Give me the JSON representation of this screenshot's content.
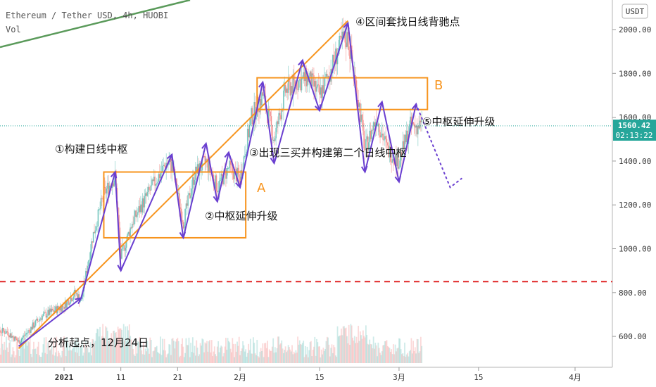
{
  "header": {
    "symbol_line": "Ethereum / Tether USD, 4h, HUOBI",
    "volume_label": "Vol",
    "currency": "USDT"
  },
  "price_tag": {
    "price": "1560.42",
    "countdown": "02:13:22"
  },
  "colors": {
    "candle_up": "#26a69a",
    "candle_down": "#ef5350",
    "zone": "#f7941d",
    "arrow": "#6a3fd0",
    "red_dash": "#e02424",
    "ma_green": "#5a9a5a",
    "price_tag": "#26a69a"
  },
  "annotations": {
    "start": "分析起点，12月24日",
    "step1": "①构建日线中枢",
    "step2": "②中枢延伸升级",
    "step3": "③出现三买并构建第二个日线中枢",
    "step4": "④区间套找日线背驰点",
    "step5": "⑤中枢延伸升级",
    "zone_a": "A",
    "zone_b": "B"
  },
  "chart_data": {
    "type": "candlestick",
    "title": "Ethereum / Tether USD, 4h, HUOBI",
    "y_ticks": [
      2000,
      1800,
      1600,
      1400,
      1200,
      1000,
      800,
      600
    ],
    "y_range": [
      500,
      2100
    ],
    "x_ticks": [
      "2021",
      "11",
      "21",
      "2月",
      "15",
      "3月",
      "15",
      "4月"
    ],
    "x_tick_dates": [
      "2021-01-01",
      "2021-01-11",
      "2021-01-21",
      "2021-02-01",
      "2021-02-15",
      "2021-03-01",
      "2021-03-15",
      "2021-04-01"
    ],
    "last_price": 1560.42,
    "support_level": 850,
    "zones": [
      {
        "label": "A",
        "start": "2021-01-08",
        "end": "2021-02-02",
        "low": 1050,
        "high": 1350
      },
      {
        "label": "B",
        "start": "2021-02-04",
        "end": "2021-03-06",
        "low": 1635,
        "high": 1780
      }
    ],
    "structure_path": [
      {
        "date": "2020-12-24",
        "price": 555
      },
      {
        "date": "2021-01-04",
        "price": 775
      },
      {
        "date": "2021-01-10",
        "price": 1350
      },
      {
        "date": "2021-01-11",
        "price": 900
      },
      {
        "date": "2021-01-20",
        "price": 1430
      },
      {
        "date": "2021-01-22",
        "price": 1050
      },
      {
        "date": "2021-01-26",
        "price": 1480
      },
      {
        "date": "2021-01-28",
        "price": 1215
      },
      {
        "date": "2021-01-30",
        "price": 1440
      },
      {
        "date": "2021-02-01",
        "price": 1280
      },
      {
        "date": "2021-02-05",
        "price": 1760
      },
      {
        "date": "2021-02-07",
        "price": 1390
      },
      {
        "date": "2021-02-12",
        "price": 1860
      },
      {
        "date": "2021-02-15",
        "price": 1630
      },
      {
        "date": "2021-02-20",
        "price": 2030
      },
      {
        "date": "2021-02-23",
        "price": 1350
      },
      {
        "date": "2021-02-26",
        "price": 1670
      },
      {
        "date": "2021-03-01",
        "price": 1305
      },
      {
        "date": "2021-03-04",
        "price": 1660
      }
    ],
    "trend_line": [
      {
        "date": "2020-12-24",
        "price": 545
      },
      {
        "date": "2021-02-20",
        "price": 2040
      }
    ],
    "projection": [
      {
        "date": "2021-03-04",
        "price": 1660
      },
      {
        "date": "2021-03-10",
        "price": 1280
      },
      {
        "date": "2021-03-12",
        "price": 1320
      }
    ],
    "candle_series": [
      {
        "date": "2020-12-18",
        "price": 640
      },
      {
        "date": "2020-12-22",
        "price": 620
      },
      {
        "date": "2020-12-24",
        "price": 575
      },
      {
        "date": "2020-12-28",
        "price": 690
      },
      {
        "date": "2021-01-01",
        "price": 740
      },
      {
        "date": "2021-01-03",
        "price": 800
      },
      {
        "date": "2021-01-04",
        "price": 760
      },
      {
        "date": "2021-01-06",
        "price": 1050
      },
      {
        "date": "2021-01-08",
        "price": 1250
      },
      {
        "date": "2021-01-10",
        "price": 1330
      },
      {
        "date": "2021-01-11",
        "price": 960
      },
      {
        "date": "2021-01-13",
        "price": 1120
      },
      {
        "date": "2021-01-16",
        "price": 1260
      },
      {
        "date": "2021-01-19",
        "price": 1390
      },
      {
        "date": "2021-01-20",
        "price": 1380
      },
      {
        "date": "2021-01-22",
        "price": 1120
      },
      {
        "date": "2021-01-24",
        "price": 1340
      },
      {
        "date": "2021-01-26",
        "price": 1400
      },
      {
        "date": "2021-01-28",
        "price": 1280
      },
      {
        "date": "2021-01-30",
        "price": 1370
      },
      {
        "date": "2021-02-01",
        "price": 1320
      },
      {
        "date": "2021-02-03",
        "price": 1600
      },
      {
        "date": "2021-02-05",
        "price": 1700
      },
      {
        "date": "2021-02-07",
        "price": 1500
      },
      {
        "date": "2021-02-09",
        "price": 1720
      },
      {
        "date": "2021-02-11",
        "price": 1760
      },
      {
        "date": "2021-02-13",
        "price": 1780
      },
      {
        "date": "2021-02-15",
        "price": 1700
      },
      {
        "date": "2021-02-17",
        "price": 1820
      },
      {
        "date": "2021-02-19",
        "price": 1950
      },
      {
        "date": "2021-02-20",
        "price": 1960
      },
      {
        "date": "2021-02-22",
        "price": 1650
      },
      {
        "date": "2021-02-23",
        "price": 1450
      },
      {
        "date": "2021-02-25",
        "price": 1600
      },
      {
        "date": "2021-02-27",
        "price": 1450
      },
      {
        "date": "2021-03-01",
        "price": 1400
      },
      {
        "date": "2021-03-03",
        "price": 1560
      },
      {
        "date": "2021-03-05",
        "price": 1560
      }
    ]
  }
}
